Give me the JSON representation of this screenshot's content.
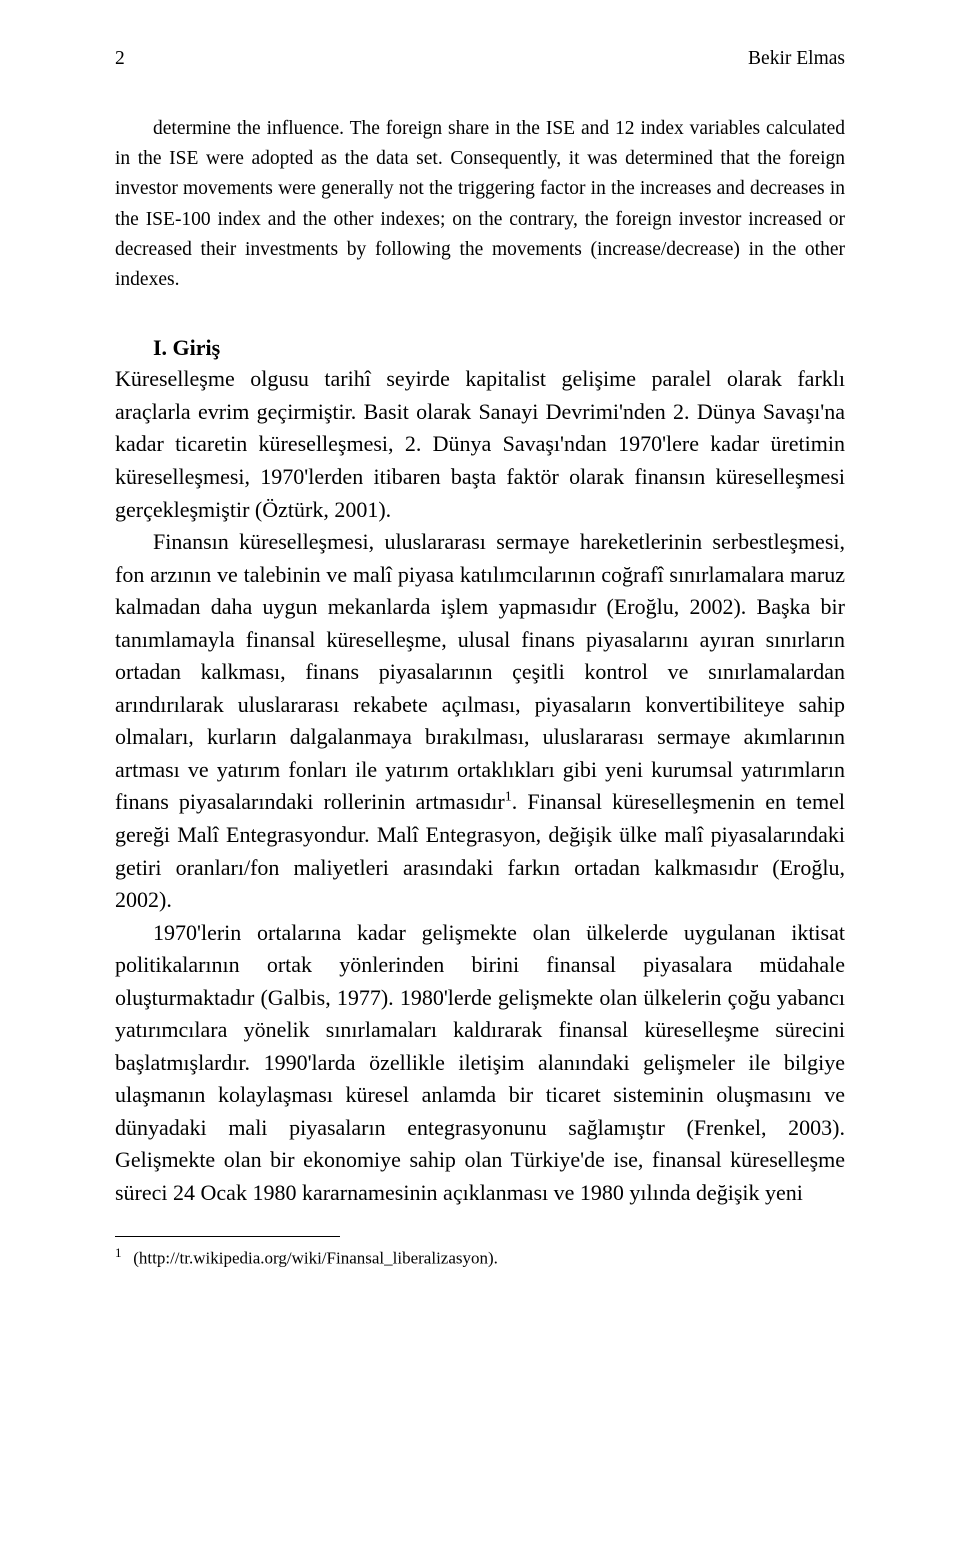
{
  "header": {
    "page_number": "2",
    "author": "Bekir Elmas"
  },
  "abstract": {
    "p1": "determine the influence. The foreign share in the ISE and 12 index variables calculated in the ISE were adopted as the data set. Consequently, it was determined that the foreign investor movements were generally not the triggering factor in the increases and decreases in the ISE-100 index and the other indexes; on the contrary, the foreign investor increased or decreased their investments by following the movements (increase/decrease) in the other indexes."
  },
  "section": {
    "heading": "I. Giriş"
  },
  "body": {
    "p1": "Küreselleşme olgusu tarihî seyirde kapitalist gelişime paralel olarak farklı araçlarla evrim geçirmiştir. Basit olarak Sanayi Devrimi'nden 2. Dünya Savaşı'na kadar ticaretin küreselleşmesi, 2. Dünya Savaşı'ndan 1970'lere kadar üretimin küreselleşmesi, 1970'lerden itibaren başta faktör olarak finansın küreselleşmesi gerçekleşmiştir (Öztürk, 2001).",
    "p2a": "Finansın küreselleşmesi, uluslararası sermaye hareketlerinin serbestleşmesi, fon arzının ve talebinin ve malî piyasa katılımcılarının coğrafî sınırlamalara maruz kalmadan daha uygun mekanlarda işlem yapmasıdır (Eroğlu, 2002). Başka bir tanımlamayla finansal küreselleşme, ulusal finans piyasalarını ayıran sınırların ortadan kalkması, finans piyasalarının çeşitli kontrol ve sınırlamalardan arındırılarak uluslararası rekabete açılması, piyasaların konvertibiliteye sahip olmaları, kurların dalgalanmaya bırakılması, uluslararası sermaye akımlarının artması ve yatırım fonları ile yatırım ortaklıkları gibi yeni kurumsal yatırımların finans piyasalarındaki rollerinin artmasıdır",
    "p2b": ". Finansal küreselleşmenin en temel gereği Malî Entegrasyondur. Malî Entegrasyon, değişik ülke malî piyasalarındaki getiri oranları/fon maliyetleri arasındaki farkın ortadan kalkmasıdır (Eroğlu, 2002).",
    "p3": "1970'lerin ortalarına kadar gelişmekte olan ülkelerde uygulanan iktisat politikalarının ortak yönlerinden birini finansal piyasalara müdahale oluşturmaktadır (Galbis, 1977). 1980'lerde gelişmekte olan ülkelerin çoğu yabancı yatırımcılara yönelik sınırlamaları kaldırarak finansal küreselleşme sürecini başlatmışlardır. 1990'larda özellikle iletişim alanındaki gelişmeler ile bilgiye ulaşmanın kolaylaşması küresel anlamda bir ticaret sisteminin oluşmasını ve dünyadaki mali piyasaların entegrasyonunu sağlamıştır (Frenkel, 2003). Gelişmekte olan bir ekonomiye sahip olan Türkiye'de ise, finansal küreselleşme süreci 24 Ocak 1980 kararnamesinin açıklanması ve 1980 yılında değişik yeni"
  },
  "footnote": {
    "num": "1",
    "text": "(http://tr.wikipedia.org/wiki/Finansal_liberalizasyon).",
    "sup_marker": "1"
  }
}
